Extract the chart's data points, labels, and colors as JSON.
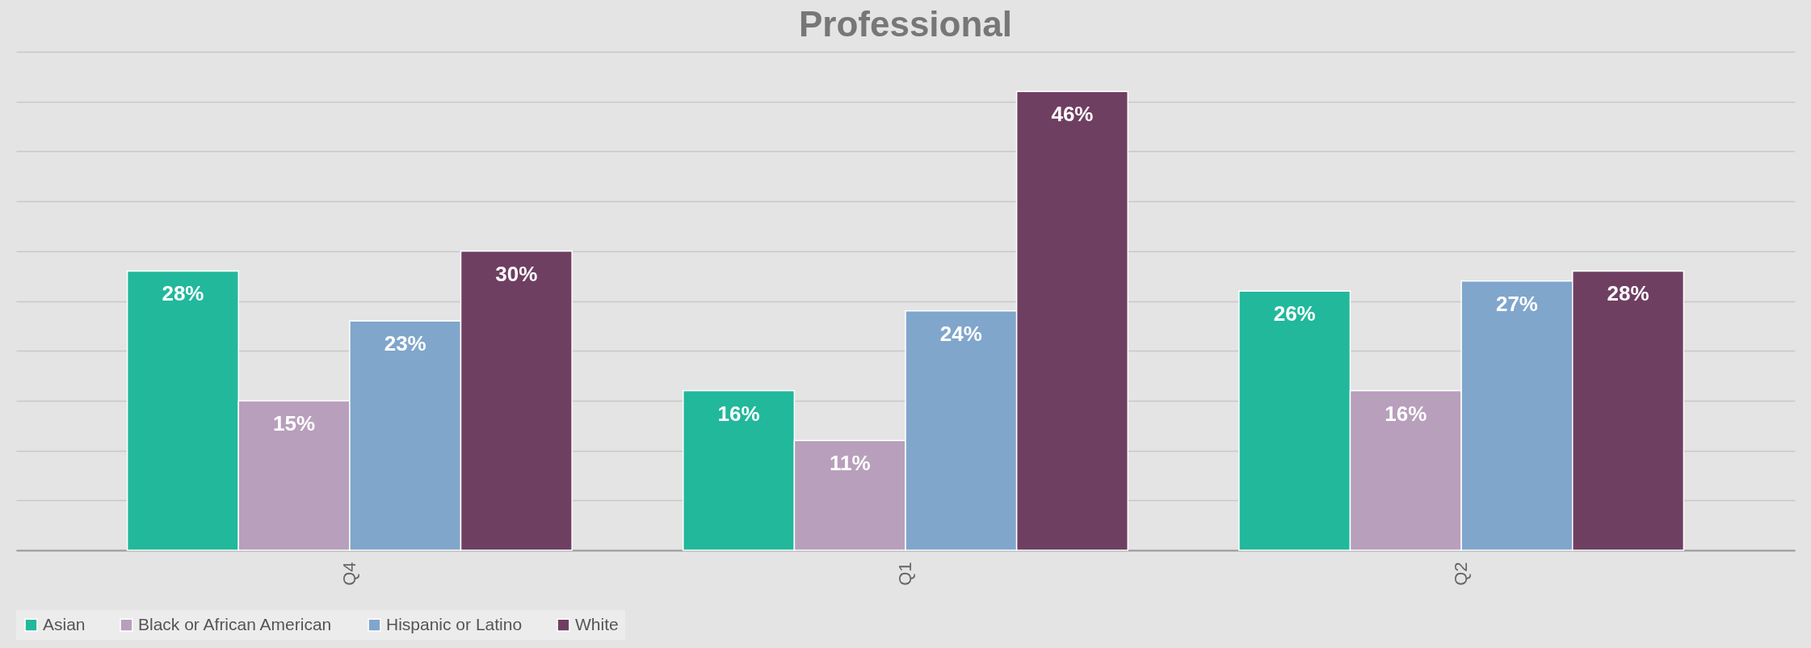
{
  "chart_data": {
    "type": "bar",
    "title": "Professional",
    "categories": [
      "Q4",
      "Q1",
      "Q2"
    ],
    "series": [
      {
        "name": "Asian",
        "color": "#22b89c",
        "values": [
          28,
          16,
          26
        ],
        "value_labels": [
          "28%",
          "16%",
          "26%"
        ]
      },
      {
        "name": "Black or African American",
        "color": "#b89fbc",
        "values": [
          15,
          11,
          16
        ],
        "value_labels": [
          "15%",
          "11%",
          "16%"
        ]
      },
      {
        "name": "Hispanic or Latino",
        "color": "#80a6cc",
        "values": [
          23,
          24,
          27
        ],
        "value_labels": [
          "23%",
          "24%",
          "27%"
        ]
      },
      {
        "name": "White",
        "color": "#6f3f62",
        "values": [
          30,
          46,
          28
        ],
        "value_labels": [
          "30%",
          "46%",
          "28%"
        ]
      }
    ],
    "ylim": [
      0,
      50
    ],
    "yticks": [
      0,
      5,
      10,
      15,
      20,
      25,
      30,
      35,
      40,
      45,
      50
    ],
    "grid": "y",
    "tick_labels": "x",
    "legend": "bottom"
  }
}
